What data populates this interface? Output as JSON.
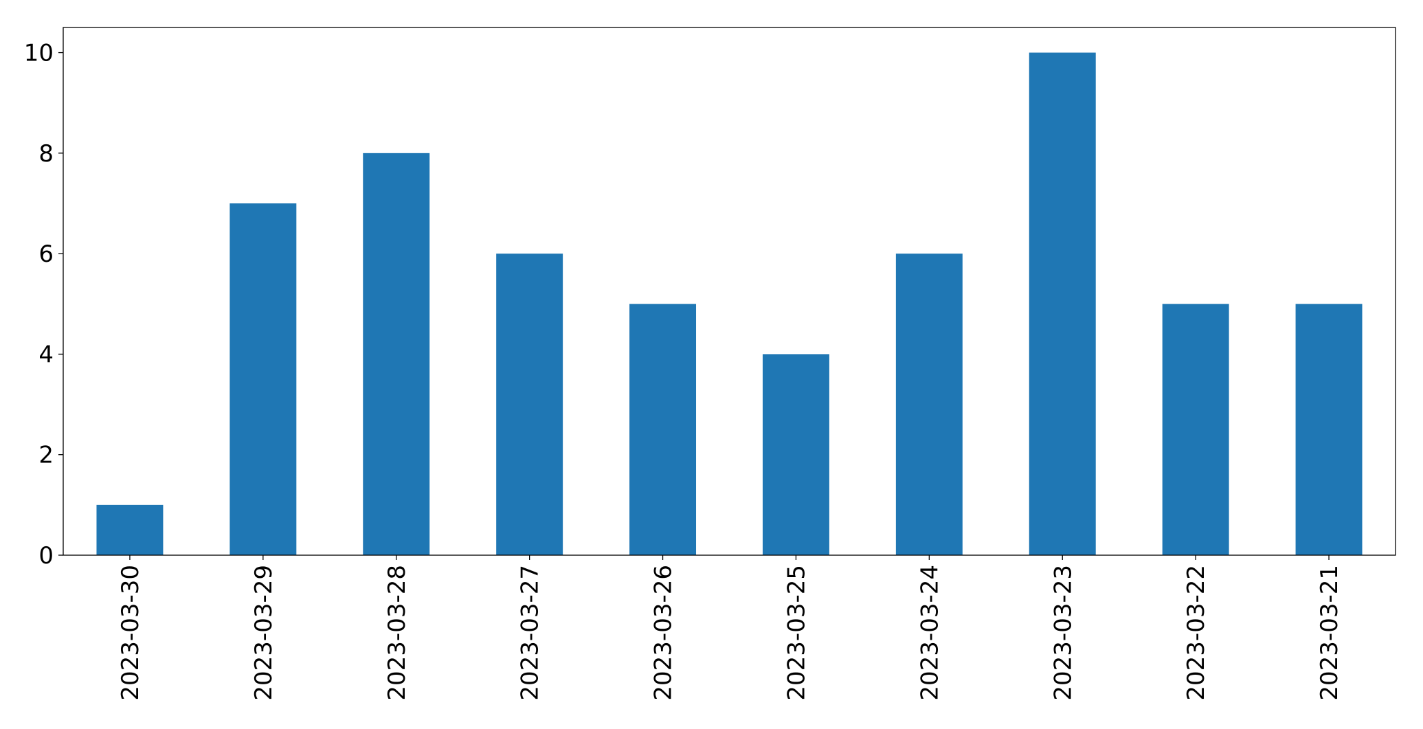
{
  "chart_data": {
    "type": "bar",
    "categories": [
      "2023-03-30",
      "2023-03-29",
      "2023-03-28",
      "2023-03-27",
      "2023-03-26",
      "2023-03-25",
      "2023-03-24",
      "2023-03-23",
      "2023-03-22",
      "2023-03-21"
    ],
    "values": [
      1,
      7,
      8,
      6,
      5,
      4,
      6,
      10,
      5,
      5
    ],
    "color": "#1f77b4",
    "ylim": [
      0,
      10.5
    ],
    "yticks": [
      0,
      2,
      4,
      6,
      8,
      10
    ],
    "grid": false
  }
}
